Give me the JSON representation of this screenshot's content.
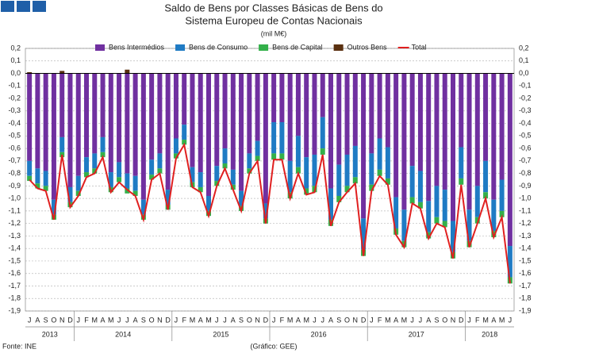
{
  "chart_data": {
    "type": "bar",
    "stacked": true,
    "title": [
      "Saldo de Bens por Classes Básicas de Bens do",
      "Sistema Europeu de Contas Nacionais"
    ],
    "subtitle": "(mil M€)",
    "source": "Fonte: INE",
    "credit": "(Gráfico: GEE)",
    "categories": [
      "J",
      "A",
      "S",
      "O",
      "N",
      "D",
      "J",
      "F",
      "M",
      "A",
      "M",
      "J",
      "J",
      "A",
      "S",
      "O",
      "N",
      "D",
      "J",
      "F",
      "M",
      "A",
      "M",
      "J",
      "J",
      "A",
      "S",
      "O",
      "N",
      "D",
      "J",
      "F",
      "M",
      "A",
      "M",
      "J",
      "J",
      "A",
      "S",
      "O",
      "N",
      "D",
      "J",
      "F",
      "M",
      "A",
      "M",
      "J",
      "J",
      "A",
      "S",
      "O",
      "N",
      "D",
      "J",
      "F",
      "M",
      "A",
      "M",
      "J"
    ],
    "years": [
      "2013",
      "2014",
      "2015",
      "2016",
      "2017",
      "2018"
    ],
    "series": [
      {
        "name": "Bens Intermédios",
        "color": "#7030a0",
        "values": [
          -0.7,
          -0.76,
          -0.78,
          -1.01,
          -0.51,
          -0.91,
          -0.82,
          -0.67,
          -0.64,
          -0.51,
          -0.79,
          -0.71,
          -0.8,
          -0.82,
          -1.01,
          -0.69,
          -0.64,
          -0.93,
          -0.52,
          -0.41,
          -0.75,
          -0.79,
          -0.98,
          -0.74,
          -0.6,
          -0.77,
          -0.94,
          -0.64,
          -0.54,
          -1.04,
          -0.39,
          -0.39,
          -0.7,
          -0.5,
          -0.67,
          -0.65,
          -0.35,
          -0.92,
          -0.73,
          -0.65,
          -0.58,
          -1.16,
          -0.64,
          -0.52,
          -0.59,
          -0.99,
          -1.09,
          -0.74,
          -0.78,
          -1.02,
          -0.9,
          -0.93,
          -1.18,
          -0.59,
          -1.09,
          -0.9,
          -0.7,
          -1.01,
          -0.85,
          -1.38
        ]
      },
      {
        "name": "Bens de Consumo",
        "color": "#1f7bc4",
        "values": [
          -0.12,
          -0.12,
          -0.12,
          -0.12,
          -0.12,
          -0.12,
          -0.12,
          -0.12,
          -0.12,
          -0.12,
          -0.12,
          -0.12,
          -0.12,
          -0.12,
          -0.12,
          -0.12,
          -0.12,
          -0.12,
          -0.12,
          -0.12,
          -0.12,
          -0.12,
          -0.12,
          -0.12,
          -0.12,
          -0.12,
          -0.12,
          -0.12,
          -0.12,
          -0.12,
          -0.25,
          -0.25,
          -0.25,
          -0.25,
          -0.25,
          -0.25,
          -0.25,
          -0.25,
          -0.25,
          -0.25,
          -0.25,
          -0.25,
          -0.25,
          -0.25,
          -0.25,
          -0.25,
          -0.25,
          -0.25,
          -0.25,
          -0.25,
          -0.25,
          -0.25,
          -0.25,
          -0.25,
          -0.25,
          -0.25,
          -0.25,
          -0.25,
          -0.25,
          -0.25
        ]
      },
      {
        "name": "Bens de Capital",
        "color": "#33b04a",
        "values": [
          -0.04,
          -0.04,
          -0.04,
          -0.04,
          -0.04,
          -0.04,
          -0.04,
          -0.04,
          -0.04,
          -0.04,
          -0.04,
          -0.04,
          -0.04,
          -0.04,
          -0.04,
          -0.04,
          -0.04,
          -0.04,
          -0.04,
          -0.04,
          -0.04,
          -0.04,
          -0.04,
          -0.04,
          -0.04,
          -0.04,
          -0.04,
          -0.04,
          -0.04,
          -0.04,
          -0.05,
          -0.05,
          -0.05,
          -0.05,
          -0.05,
          -0.05,
          -0.05,
          -0.05,
          -0.05,
          -0.05,
          -0.05,
          -0.05,
          -0.05,
          -0.05,
          -0.05,
          -0.05,
          -0.05,
          -0.05,
          -0.05,
          -0.05,
          -0.05,
          -0.05,
          -0.05,
          -0.05,
          -0.05,
          -0.05,
          -0.05,
          -0.05,
          -0.05,
          -0.05
        ]
      },
      {
        "name": "Outros Bens",
        "color": "#5a3010",
        "values": [
          0.01,
          0,
          0,
          0,
          0.02,
          0,
          0,
          0,
          0,
          0,
          0,
          0,
          0.03,
          0,
          0,
          0,
          0,
          0,
          0,
          0,
          0,
          0,
          0,
          0,
          0,
          0,
          0,
          0,
          0,
          0,
          0,
          0,
          0,
          0,
          0,
          0,
          0,
          0,
          0,
          0,
          0,
          0,
          0,
          0,
          0,
          0,
          0,
          0,
          0,
          0,
          0,
          0,
          0,
          0,
          0,
          0,
          0,
          0,
          0,
          0
        ]
      },
      {
        "name": "Total",
        "color": "#e02020",
        "type": "line",
        "values": [
          -0.85,
          -0.92,
          -0.94,
          -1.17,
          -0.65,
          -1.07,
          -0.98,
          -0.83,
          -0.8,
          -0.67,
          -0.95,
          -0.87,
          -0.93,
          -0.98,
          -1.17,
          -0.85,
          -0.8,
          -1.09,
          -0.68,
          -0.57,
          -0.91,
          -0.95,
          -1.14,
          -0.9,
          -0.76,
          -0.93,
          -1.1,
          -0.8,
          -0.7,
          -1.2,
          -0.69,
          -0.69,
          -1.0,
          -0.8,
          -0.97,
          -0.95,
          -0.65,
          -1.22,
          -1.03,
          -0.95,
          -0.88,
          -1.46,
          -0.94,
          -0.82,
          -0.89,
          -1.29,
          -1.39,
          -1.04,
          -1.08,
          -1.32,
          -1.2,
          -1.23,
          -1.48,
          -0.89,
          -1.39,
          -1.2,
          -1.0,
          -1.31,
          -1.15,
          -1.68
        ]
      }
    ],
    "ylim": [
      -1.9,
      0.2
    ],
    "yticks": [
      {
        "value": 0.2,
        "label": "0,2"
      },
      {
        "value": 0.1,
        "label": "0,1"
      },
      {
        "value": 0,
        "label": "0,0"
      },
      {
        "value": -0.1,
        "label": "-0,1"
      },
      {
        "value": -0.2,
        "label": "-0,2"
      },
      {
        "value": -0.3,
        "label": "-0,3"
      },
      {
        "value": -0.4,
        "label": "-0,4"
      },
      {
        "value": -0.5,
        "label": "-0,5"
      },
      {
        "value": -0.6,
        "label": "-0,6"
      },
      {
        "value": -0.7,
        "label": "-0,7"
      },
      {
        "value": -0.8,
        "label": "-0,8"
      },
      {
        "value": -0.9,
        "label": "-0,9"
      },
      {
        "value": -1,
        "label": "-1,0"
      },
      {
        "value": -1.1,
        "label": "-1,1"
      },
      {
        "value": -1.2,
        "label": "-1,2"
      },
      {
        "value": -1.3,
        "label": "-1,3"
      },
      {
        "value": -1.4,
        "label": "-1,4"
      },
      {
        "value": -1.5,
        "label": "-1,5"
      },
      {
        "value": -1.6,
        "label": "-1,6"
      },
      {
        "value": -1.7,
        "label": "-1,7"
      },
      {
        "value": -1.8,
        "label": "-1,8"
      },
      {
        "value": -1.9,
        "label": "-1,9"
      }
    ],
    "grid": true
  }
}
